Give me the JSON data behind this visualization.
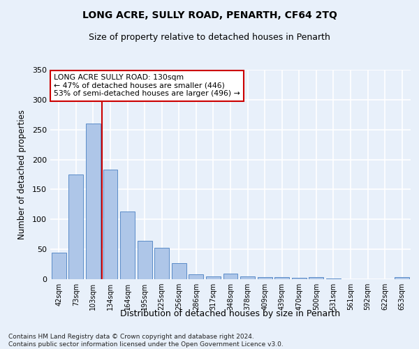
{
  "title": "LONG ACRE, SULLY ROAD, PENARTH, CF64 2TQ",
  "subtitle": "Size of property relative to detached houses in Penarth",
  "xlabel": "Distribution of detached houses by size in Penarth",
  "ylabel": "Number of detached properties",
  "categories": [
    "42sqm",
    "73sqm",
    "103sqm",
    "134sqm",
    "164sqm",
    "195sqm",
    "225sqm",
    "256sqm",
    "286sqm",
    "317sqm",
    "348sqm",
    "378sqm",
    "409sqm",
    "439sqm",
    "470sqm",
    "500sqm",
    "531sqm",
    "561sqm",
    "592sqm",
    "622sqm",
    "653sqm"
  ],
  "values": [
    44,
    175,
    260,
    183,
    113,
    64,
    52,
    27,
    8,
    5,
    9,
    5,
    3,
    3,
    2,
    3,
    1,
    0,
    0,
    0,
    3
  ],
  "bar_color": "#aec6e8",
  "bar_edge_color": "#5b8cc8",
  "background_color": "#e8f0fa",
  "grid_color": "#ffffff",
  "vline_x_index": 2,
  "vline_color": "#cc0000",
  "annotation_text": "LONG ACRE SULLY ROAD: 130sqm\n← 47% of detached houses are smaller (446)\n53% of semi-detached houses are larger (496) →",
  "annotation_box_color": "#ffffff",
  "annotation_box_edge_color": "#cc0000",
  "ylim": [
    0,
    350
  ],
  "yticks": [
    0,
    50,
    100,
    150,
    200,
    250,
    300,
    350
  ],
  "footer_line1": "Contains HM Land Registry data © Crown copyright and database right 2024.",
  "footer_line2": "Contains public sector information licensed under the Open Government Licence v3.0."
}
